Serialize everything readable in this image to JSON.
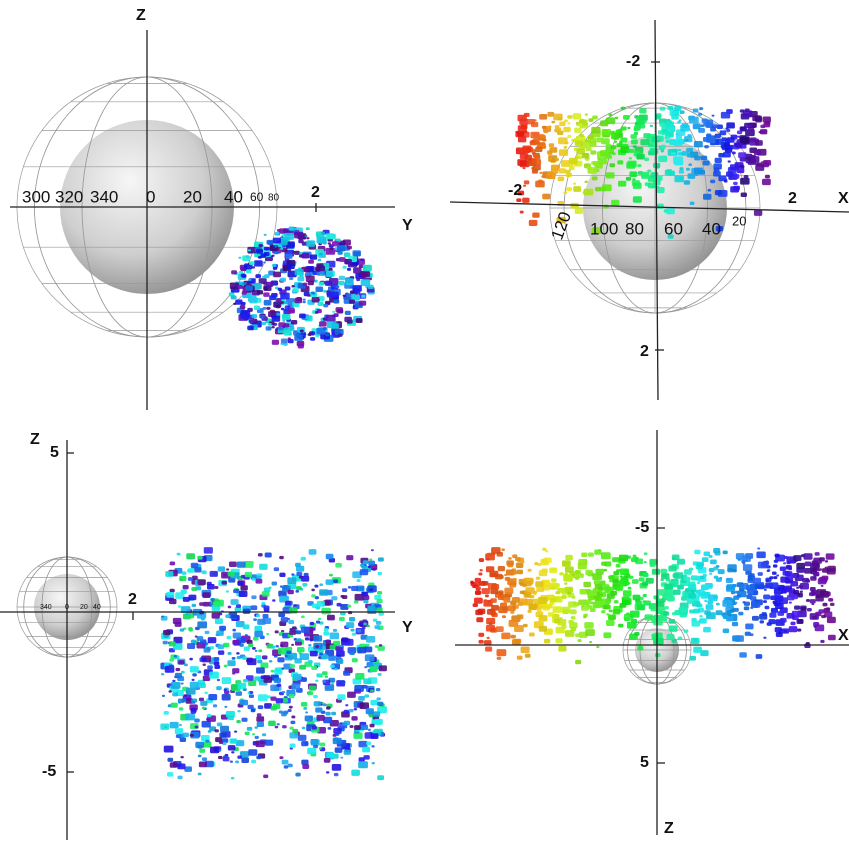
{
  "panels": [
    {
      "axis_labels": [
        "Z",
        "Y"
      ],
      "ticks": [
        "2"
      ],
      "longitudes": [
        "300",
        "320",
        "340",
        "0",
        "20",
        "40",
        "60",
        "80"
      ]
    },
    {
      "axis_labels": [
        "X"
      ],
      "ticks": [
        "-2",
        "-2",
        "2",
        "2"
      ],
      "longitudes": [
        "120",
        "100",
        "80",
        "60",
        "40",
        "20"
      ]
    },
    {
      "axis_labels": [
        "Z",
        "Y"
      ],
      "ticks": [
        "5",
        "2",
        "-5"
      ],
      "longitudes": [
        "340",
        "0",
        "20",
        "40"
      ]
    },
    {
      "axis_labels": [
        "X",
        "Z"
      ],
      "ticks": [
        "-5",
        "5"
      ]
    }
  ]
}
